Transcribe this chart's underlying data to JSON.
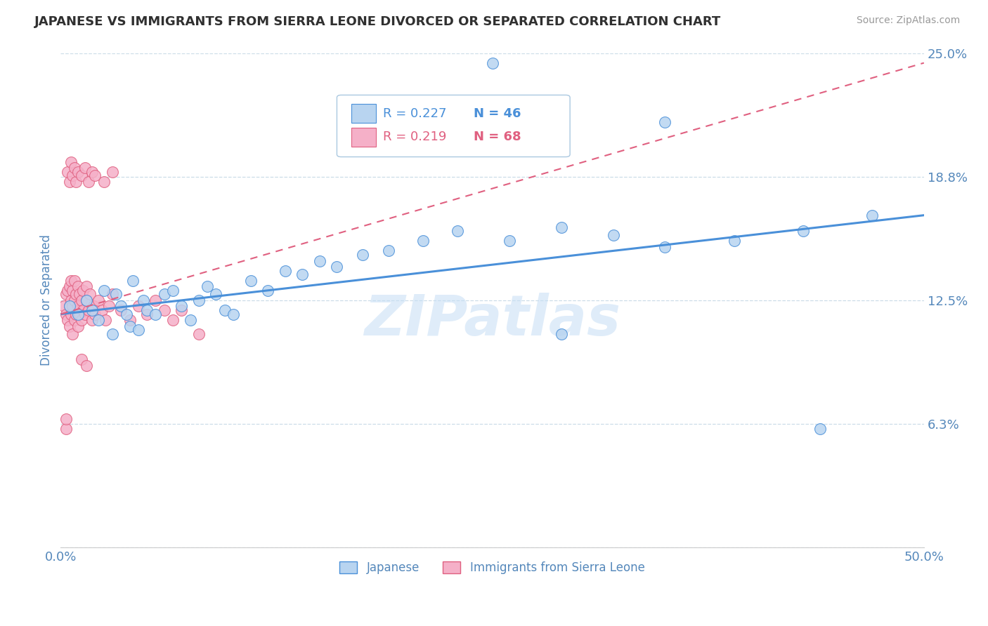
{
  "title": "JAPANESE VS IMMIGRANTS FROM SIERRA LEONE DIVORCED OR SEPARATED CORRELATION CHART",
  "source_text": "Source: ZipAtlas.com",
  "ylabel": "Divorced or Separated",
  "watermark": "ZIPatlas",
  "xmin": 0.0,
  "xmax": 0.5,
  "ymin": 0.0,
  "ymax": 0.25,
  "yticks": [
    0.0,
    0.0625,
    0.125,
    0.1875,
    0.25
  ],
  "ytick_labels": [
    "",
    "6.3%",
    "12.5%",
    "18.8%",
    "25.0%"
  ],
  "xticks": [
    0.0,
    0.125,
    0.25,
    0.375,
    0.5
  ],
  "xtick_labels": [
    "0.0%",
    "",
    "",
    "",
    "50.0%"
  ],
  "legend_R1": "R = 0.227",
  "legend_N1": "N = 46",
  "legend_R2": "R = 0.219",
  "legend_N2": "N = 68",
  "color_japanese": "#b8d4f0",
  "color_sierra": "#f5b0c8",
  "color_trendline_japanese": "#4a90d9",
  "color_trendline_sierra": "#e06080",
  "background_color": "#ffffff",
  "grid_color": "#ccdde8",
  "title_color": "#303030",
  "tick_label_color": "#5588bb",
  "japanese_x": [
    0.005,
    0.01,
    0.015,
    0.018,
    0.022,
    0.025,
    0.03,
    0.032,
    0.035,
    0.038,
    0.04,
    0.042,
    0.045,
    0.048,
    0.05,
    0.055,
    0.06,
    0.065,
    0.07,
    0.075,
    0.08,
    0.085,
    0.09,
    0.095,
    0.1,
    0.11,
    0.12,
    0.13,
    0.14,
    0.15,
    0.16,
    0.175,
    0.19,
    0.21,
    0.23,
    0.26,
    0.29,
    0.32,
    0.35,
    0.39,
    0.43,
    0.47,
    0.29,
    0.35,
    0.25,
    0.44
  ],
  "japanese_y": [
    0.122,
    0.118,
    0.125,
    0.12,
    0.115,
    0.13,
    0.108,
    0.128,
    0.122,
    0.118,
    0.112,
    0.135,
    0.11,
    0.125,
    0.12,
    0.118,
    0.128,
    0.13,
    0.122,
    0.115,
    0.125,
    0.132,
    0.128,
    0.12,
    0.118,
    0.135,
    0.13,
    0.14,
    0.138,
    0.145,
    0.142,
    0.148,
    0.15,
    0.155,
    0.16,
    0.155,
    0.162,
    0.158,
    0.152,
    0.155,
    0.16,
    0.168,
    0.108,
    0.215,
    0.245,
    0.06
  ],
  "sierra_x": [
    0.002,
    0.003,
    0.003,
    0.004,
    0.004,
    0.005,
    0.005,
    0.005,
    0.006,
    0.006,
    0.006,
    0.007,
    0.007,
    0.007,
    0.008,
    0.008,
    0.008,
    0.009,
    0.009,
    0.01,
    0.01,
    0.01,
    0.011,
    0.011,
    0.012,
    0.012,
    0.013,
    0.013,
    0.014,
    0.015,
    0.015,
    0.016,
    0.017,
    0.018,
    0.019,
    0.02,
    0.022,
    0.024,
    0.026,
    0.028,
    0.03,
    0.035,
    0.04,
    0.045,
    0.05,
    0.055,
    0.06,
    0.065,
    0.07,
    0.004,
    0.005,
    0.006,
    0.007,
    0.008,
    0.009,
    0.01,
    0.012,
    0.014,
    0.016,
    0.018,
    0.02,
    0.025,
    0.03,
    0.012,
    0.015,
    0.003,
    0.003,
    0.08
  ],
  "sierra_y": [
    0.122,
    0.118,
    0.128,
    0.115,
    0.13,
    0.112,
    0.122,
    0.132,
    0.118,
    0.125,
    0.135,
    0.108,
    0.122,
    0.13,
    0.115,
    0.125,
    0.135,
    0.118,
    0.128,
    0.112,
    0.122,
    0.132,
    0.118,
    0.128,
    0.115,
    0.125,
    0.12,
    0.13,
    0.118,
    0.125,
    0.132,
    0.12,
    0.128,
    0.115,
    0.122,
    0.118,
    0.125,
    0.12,
    0.115,
    0.122,
    0.128,
    0.12,
    0.115,
    0.122,
    0.118,
    0.125,
    0.12,
    0.115,
    0.12,
    0.19,
    0.185,
    0.195,
    0.188,
    0.192,
    0.185,
    0.19,
    0.188,
    0.192,
    0.185,
    0.19,
    0.188,
    0.185,
    0.19,
    0.095,
    0.092,
    0.06,
    0.065,
    0.108
  ],
  "trendline_japanese_x0": 0.0,
  "trendline_japanese_x1": 0.5,
  "trendline_japanese_y0": 0.118,
  "trendline_japanese_y1": 0.168,
  "trendline_sierra_x0": 0.0,
  "trendline_sierra_x1": 0.5,
  "trendline_sierra_y0": 0.118,
  "trendline_sierra_y1": 0.245
}
